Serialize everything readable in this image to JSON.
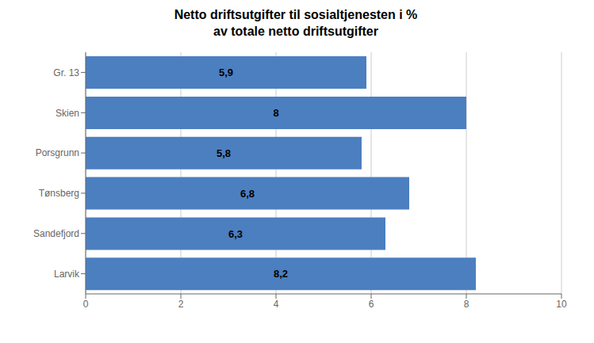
{
  "chart_data": {
    "type": "bar",
    "title": "Netto driftsutgifter til sosialtjenesten i %\nav totale netto driftsutgifter",
    "orientation": "horizontal",
    "categories": [
      "Gr. 13",
      "Skien",
      "Porsgrunn",
      "Tønsberg",
      "Sandefjord",
      "Larvik"
    ],
    "values": [
      5.9,
      8.0,
      5.8,
      6.8,
      6.3,
      8.2
    ],
    "value_labels": [
      "5,9",
      "8",
      "5,8",
      "6,8",
      "6,3",
      "8,2"
    ],
    "data_labels": true,
    "color": "#4C7FC0",
    "xlim": [
      0,
      10
    ],
    "xticks": [
      0,
      2,
      4,
      6,
      8,
      10
    ],
    "grid": true
  }
}
